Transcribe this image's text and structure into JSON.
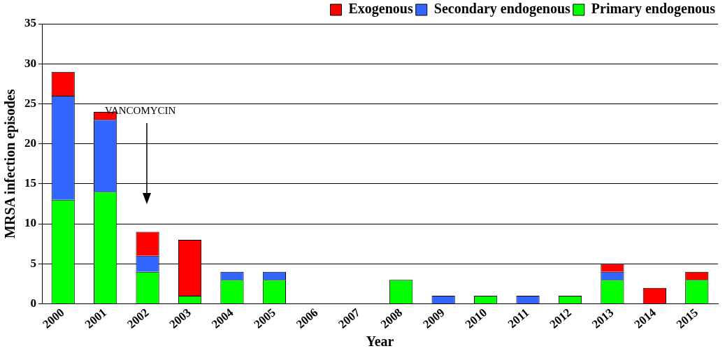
{
  "chart_data": {
    "type": "bar",
    "stacked": true,
    "xlabel": "Year",
    "ylabel": "MRSA infection episodes",
    "categories": [
      "2000",
      "2001",
      "2002",
      "2003",
      "2004",
      "2005",
      "2006",
      "2007",
      "2008",
      "2009",
      "2010",
      "2011",
      "2012",
      "2013",
      "2014",
      "2015"
    ],
    "series": [
      {
        "name": "Primary endogenous",
        "color": "#00ff00",
        "values": [
          13,
          14,
          4,
          1,
          3,
          3,
          0,
          0,
          3,
          0,
          1,
          0,
          1,
          3,
          0,
          3
        ]
      },
      {
        "name": "Secondary endogenous",
        "color": "#3366ff",
        "values": [
          13,
          9,
          2,
          0,
          1,
          1,
          0,
          0,
          0,
          1,
          0,
          1,
          0,
          1,
          0,
          0
        ]
      },
      {
        "name": "Exogenous",
        "color": "#ff0000",
        "values": [
          3,
          1,
          3,
          7,
          0,
          0,
          0,
          0,
          0,
          0,
          0,
          0,
          0,
          1,
          2,
          1
        ]
      }
    ],
    "ylim": [
      0,
      35
    ],
    "yticks": [
      0,
      5,
      10,
      15,
      20,
      25,
      30,
      35
    ],
    "grid": "y",
    "legend": "top right",
    "annotations": [
      "VANCOMYCIN"
    ]
  }
}
